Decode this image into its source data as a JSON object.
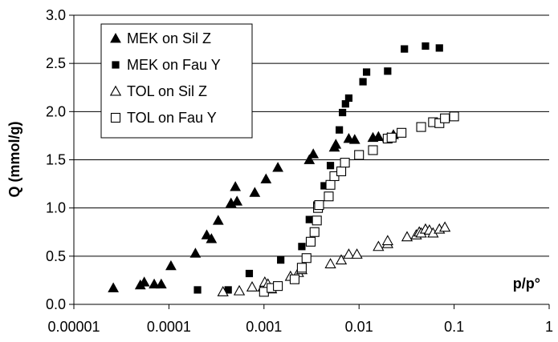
{
  "chart_data": {
    "type": "scatter",
    "title": "",
    "xlabel": "p/p°",
    "ylabel": "Q (mmol/g)",
    "xscale": "log",
    "xlim": [
      1e-05,
      1
    ],
    "ylim": [
      0,
      3.0
    ],
    "x_tick_labels": [
      "0.00001",
      "0.0001",
      "0.001",
      "0.01",
      "0.1",
      "1"
    ],
    "y_tick_labels": [
      "0.0",
      "0.5",
      "1.0",
      "1.5",
      "2.0",
      "2.5",
      "3.0"
    ],
    "grid": "horizontal",
    "legend_position": "top-left",
    "series": [
      {
        "name": "MEK on Sil Z",
        "marker": "filled-triangle",
        "points": [
          [
            2.6e-05,
            0.17
          ],
          [
            5e-05,
            0.2
          ],
          [
            5.5e-05,
            0.23
          ],
          [
            7e-05,
            0.21
          ],
          [
            8.3e-05,
            0.21
          ],
          [
            0.000105,
            0.4
          ],
          [
            0.00019,
            0.53
          ],
          [
            0.00025,
            0.72
          ],
          [
            0.00028,
            0.68
          ],
          [
            0.00033,
            0.87
          ],
          [
            0.00045,
            1.05
          ],
          [
            0.0005,
            1.22
          ],
          [
            0.00052,
            1.07
          ],
          [
            0.0008,
            1.16
          ],
          [
            0.00105,
            1.3
          ],
          [
            0.0014,
            1.42
          ],
          [
            0.003,
            1.5
          ],
          [
            0.0033,
            1.56
          ],
          [
            0.0055,
            1.63
          ],
          [
            0.0057,
            1.66
          ],
          [
            0.0078,
            1.72
          ],
          [
            0.009,
            1.71
          ],
          [
            0.014,
            1.73
          ],
          [
            0.016,
            1.74
          ],
          [
            0.02,
            1.73
          ],
          [
            0.023,
            1.76
          ]
        ]
      },
      {
        "name": "MEK on Fau Y",
        "marker": "filled-square",
        "points": [
          [
            0.0002,
            0.15
          ],
          [
            0.00042,
            0.15
          ],
          [
            0.0007,
            0.32
          ],
          [
            0.0015,
            0.46
          ],
          [
            0.0025,
            0.6
          ],
          [
            0.003,
            0.88
          ],
          [
            0.0036,
            1.03
          ],
          [
            0.0043,
            1.23
          ],
          [
            0.005,
            1.44
          ],
          [
            0.0062,
            1.81
          ],
          [
            0.0067,
            1.99
          ],
          [
            0.0072,
            2.08
          ],
          [
            0.0078,
            2.14
          ],
          [
            0.011,
            2.31
          ],
          [
            0.012,
            2.41
          ],
          [
            0.02,
            2.42
          ],
          [
            0.03,
            2.65
          ],
          [
            0.05,
            2.68
          ],
          [
            0.07,
            2.66
          ]
        ]
      },
      {
        "name": "TOL on Sil Z",
        "marker": "open-triangle",
        "points": [
          [
            0.00037,
            0.13
          ],
          [
            0.00055,
            0.14
          ],
          [
            0.00075,
            0.18
          ],
          [
            0.00098,
            0.18
          ],
          [
            0.00102,
            0.23
          ],
          [
            0.0011,
            0.21
          ],
          [
            0.0012,
            0.16
          ],
          [
            0.0019,
            0.29
          ],
          [
            0.0023,
            0.33
          ],
          [
            0.0025,
            0.36
          ],
          [
            0.005,
            0.42
          ],
          [
            0.0065,
            0.46
          ],
          [
            0.0078,
            0.52
          ],
          [
            0.0095,
            0.52
          ],
          [
            0.016,
            0.6
          ],
          [
            0.02,
            0.63
          ],
          [
            0.02,
            0.66
          ],
          [
            0.032,
            0.7
          ],
          [
            0.04,
            0.72
          ],
          [
            0.043,
            0.75
          ],
          [
            0.045,
            0.74
          ],
          [
            0.05,
            0.78
          ],
          [
            0.055,
            0.77
          ],
          [
            0.06,
            0.74
          ],
          [
            0.07,
            0.78
          ],
          [
            0.08,
            0.8
          ]
        ]
      },
      {
        "name": "TOL on Fau Y",
        "marker": "open-square",
        "points": [
          [
            0.001,
            0.13
          ],
          [
            0.0012,
            0.17
          ],
          [
            0.0014,
            0.19
          ],
          [
            0.0021,
            0.26
          ],
          [
            0.0025,
            0.38
          ],
          [
            0.0028,
            0.48
          ],
          [
            0.0031,
            0.65
          ],
          [
            0.0034,
            0.75
          ],
          [
            0.0036,
            0.87
          ],
          [
            0.0037,
            1.0
          ],
          [
            0.0038,
            1.03
          ],
          [
            0.0048,
            1.12
          ],
          [
            0.005,
            1.24
          ],
          [
            0.0055,
            1.33
          ],
          [
            0.0065,
            1.38
          ],
          [
            0.0071,
            1.47
          ],
          [
            0.01,
            1.55
          ],
          [
            0.014,
            1.6
          ],
          [
            0.02,
            1.72
          ],
          [
            0.022,
            1.73
          ],
          [
            0.028,
            1.78
          ],
          [
            0.045,
            1.84
          ],
          [
            0.06,
            1.89
          ],
          [
            0.07,
            1.88
          ],
          [
            0.08,
            1.93
          ],
          [
            0.1,
            1.95
          ]
        ]
      }
    ]
  }
}
